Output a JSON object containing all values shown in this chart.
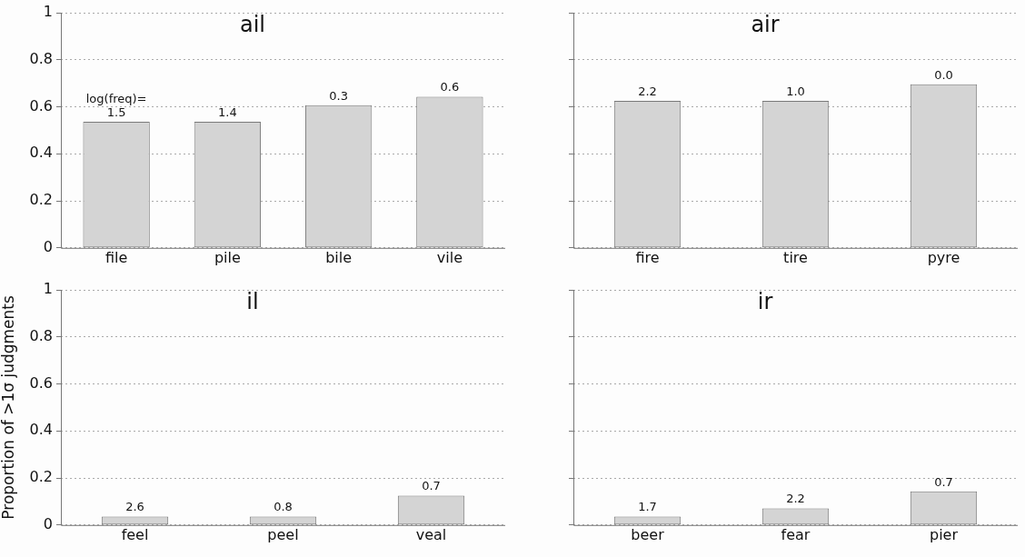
{
  "chart_data": [
    {
      "type": "bar",
      "title": "ail",
      "categories": [
        "file",
        "pile",
        "bile",
        "vile"
      ],
      "values": [
        0.536,
        0.536,
        0.607,
        0.643
      ],
      "color": "#d4d4d4",
      "ylim": [
        0,
        1
      ],
      "yticks": [
        0,
        0.2,
        0.4,
        0.6,
        0.8,
        1
      ],
      "grid": "y",
      "annotations": [
        {
          "text": "1.5",
          "x": "file",
          "y": 0.536
        },
        {
          "text": "1.4",
          "x": "pile",
          "y": 0.536
        },
        {
          "text": "0.3",
          "x": "bile",
          "y": 0.607
        },
        {
          "text": "0.6",
          "x": "vile",
          "y": 0.643
        },
        {
          "text": "log(freq)=",
          "x": "file",
          "y": 0.536
        }
      ]
    },
    {
      "type": "bar",
      "title": "air",
      "categories": [
        "fire",
        "tire",
        "pyre"
      ],
      "values": [
        0.625,
        0.625,
        0.696
      ],
      "color": "#d4d4d4",
      "ylim": [
        0,
        1
      ],
      "yticks": [
        0,
        0.2,
        0.4,
        0.6,
        0.8,
        1
      ],
      "grid": "y",
      "tick_labels": "x",
      "annotations": [
        {
          "text": "2.2",
          "x": "fire",
          "y": 0.625
        },
        {
          "text": "1.0",
          "x": "tire",
          "y": 0.625
        },
        {
          "text": "0.0",
          "x": "pyre",
          "y": 0.696
        }
      ]
    },
    {
      "type": "bar",
      "title": "il",
      "ylabel": "Proportion of >1σ judgments",
      "categories": [
        "feel",
        "peel",
        "veal"
      ],
      "values": [
        0.036,
        0.036,
        0.125
      ],
      "color": "#d4d4d4",
      "ylim": [
        0,
        1
      ],
      "yticks": [
        0,
        0.2,
        0.4,
        0.6,
        0.8,
        1
      ],
      "grid": "y",
      "annotations": [
        {
          "text": "2.6",
          "x": "feel",
          "y": 0.036
        },
        {
          "text": "0.8",
          "x": "peel",
          "y": 0.036
        },
        {
          "text": "0.7",
          "x": "veal",
          "y": 0.125
        }
      ]
    },
    {
      "type": "bar",
      "title": "ir",
      "categories": [
        "beer",
        "fear",
        "pier"
      ],
      "values": [
        0.036,
        0.071,
        0.143
      ],
      "color": "#d4d4d4",
      "ylim": [
        0,
        1
      ],
      "yticks": [
        0,
        0.2,
        0.4,
        0.6,
        0.8,
        1
      ],
      "grid": "y",
      "tick_labels": "x",
      "annotations": [
        {
          "text": "1.7",
          "x": "beer",
          "y": 0.036
        },
        {
          "text": "2.2",
          "x": "fear",
          "y": 0.071
        },
        {
          "text": "0.7",
          "x": "pier",
          "y": 0.143
        }
      ]
    }
  ]
}
